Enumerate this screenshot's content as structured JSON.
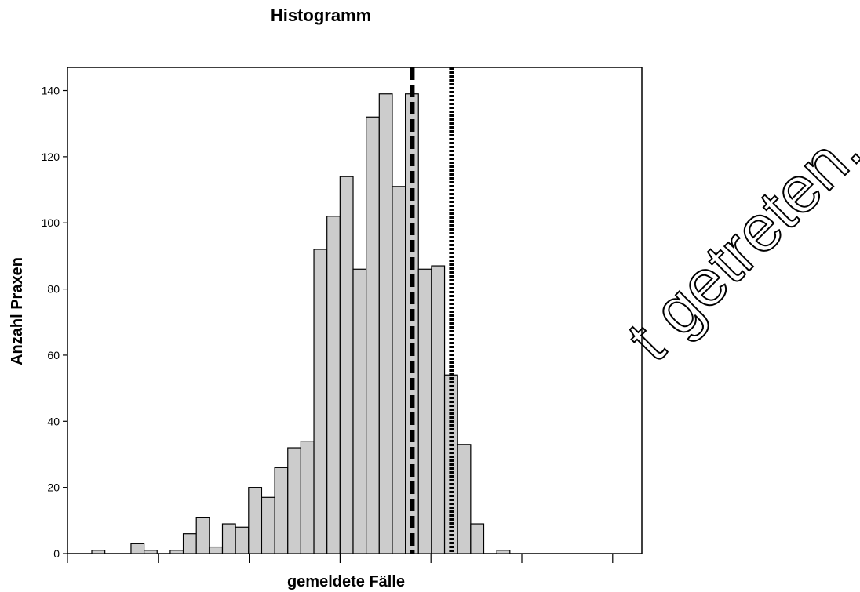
{
  "watermark_text": "t getreten.",
  "chart_data": {
    "type": "bar",
    "title": "Histogramm",
    "xlabel": "gemeldete Fälle",
    "ylabel": "Anzahl Praxen",
    "ylim": [
      0,
      147
    ],
    "yticks": [
      0,
      20,
      40,
      60,
      80,
      100,
      120,
      140
    ],
    "xticks_count": 7,
    "bar_fill": "#cccccc",
    "bar_stroke": "#000000",
    "values": [
      1,
      0,
      0,
      3,
      1,
      0,
      1,
      6,
      11,
      2,
      9,
      8,
      20,
      17,
      26,
      32,
      34,
      92,
      102,
      114,
      86,
      132,
      139,
      111,
      139,
      86,
      87,
      54,
      33,
      9,
      0,
      1,
      0,
      0,
      0,
      0,
      0
    ],
    "reference_lines": [
      {
        "style": "dashed",
        "position_bin": 24.5
      },
      {
        "style": "dotted",
        "position_bin": 27.5
      }
    ],
    "grid": false
  }
}
